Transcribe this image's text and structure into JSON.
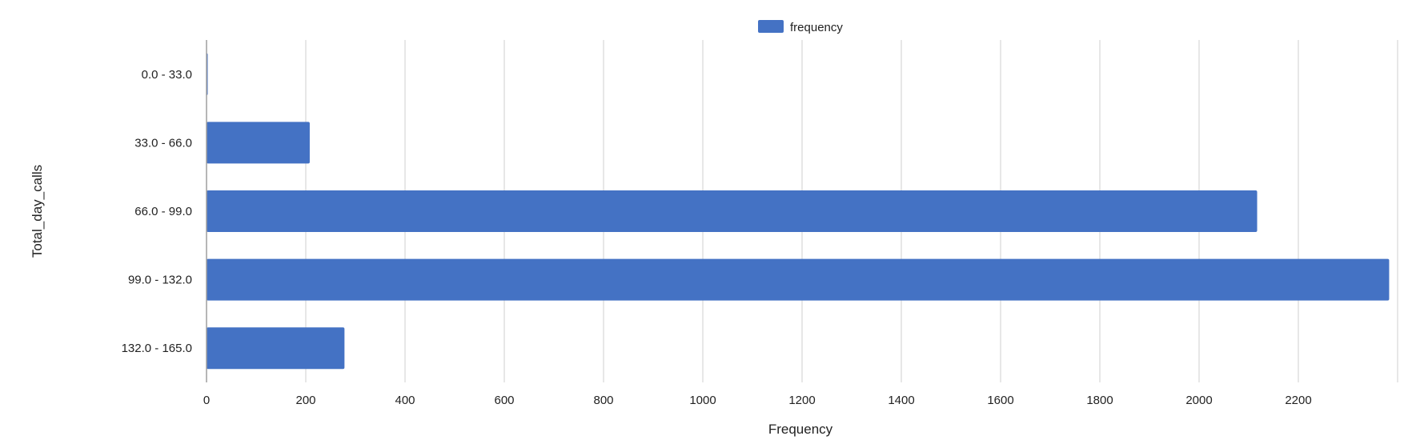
{
  "chart_data": {
    "type": "bar",
    "orientation": "horizontal",
    "categories": [
      "0.0 - 33.0",
      "33.0 - 66.0",
      "66.0 - 99.0",
      "99.0 - 132.0",
      "132.0 - 165.0"
    ],
    "series": [
      {
        "name": "frequency",
        "color": "#4472c4",
        "values": [
          2,
          208,
          2117,
          2383,
          278
        ]
      }
    ],
    "xlabel": "Frequency",
    "ylabel": "Total_day_calls",
    "xlim": [
      0,
      2400
    ],
    "x_ticks": [
      0,
      200,
      400,
      600,
      800,
      1000,
      1200,
      1400,
      1600,
      1800,
      2000,
      2200
    ],
    "grid": true,
    "legend_position": "top-center"
  }
}
